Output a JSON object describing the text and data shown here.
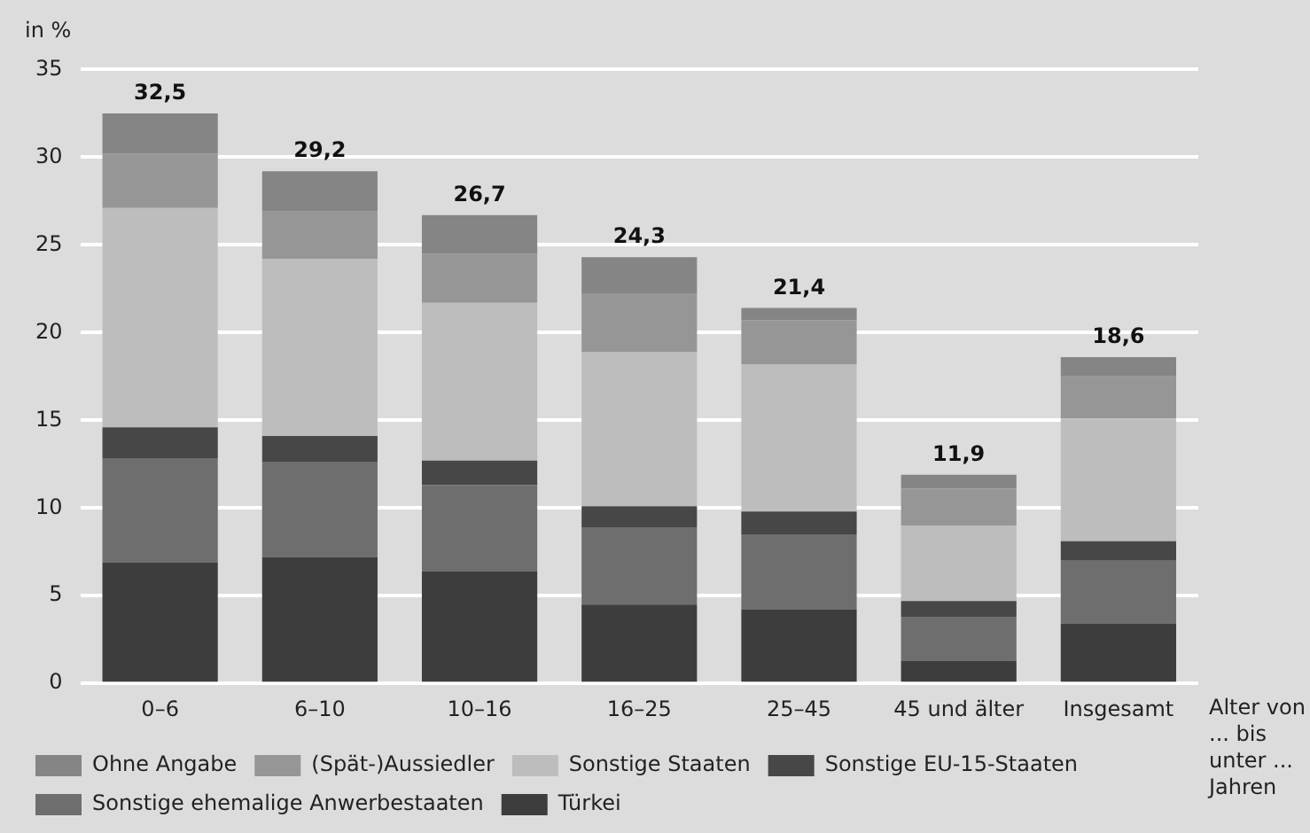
{
  "chart_data": {
    "type": "bar",
    "stacked": true,
    "ylabel": "in %",
    "xlabel": "Alter von ... bis unter ... Jahren",
    "categories": [
      "0–6",
      "6–10",
      "10–16",
      "16–25",
      "25–45",
      "45 und älter",
      "Insgesamt"
    ],
    "series": [
      {
        "name": "Türkei",
        "color": "#3d3d3d",
        "values": [
          6.9,
          7.2,
          6.4,
          4.5,
          4.2,
          1.3,
          3.4
        ]
      },
      {
        "name": "Sonstige ehemalige Anwerbestaaten",
        "color": "#6e6e6e",
        "values": [
          5.9,
          5.4,
          4.9,
          4.4,
          4.3,
          2.5,
          3.6
        ]
      },
      {
        "name": "Sonstige EU-15-Staaten",
        "color": "#474747",
        "values": [
          1.8,
          1.5,
          1.4,
          1.2,
          1.3,
          0.9,
          1.1
        ]
      },
      {
        "name": "Sonstige Staaten",
        "color": "#bdbdbd",
        "values": [
          12.5,
          10.1,
          9.0,
          8.8,
          8.4,
          4.3,
          7.0
        ]
      },
      {
        "name": "(Spät-)Aussiedler",
        "color": "#969696",
        "values": [
          3.1,
          2.7,
          2.8,
          3.3,
          2.5,
          2.1,
          2.4
        ]
      },
      {
        "name": "Ohne Angabe",
        "color": "#858585",
        "values": [
          2.3,
          2.3,
          2.2,
          2.1,
          0.7,
          0.8,
          1.1
        ]
      }
    ],
    "totals": [
      "32,5",
      "29,2",
      "26,7",
      "24,3",
      "21,4",
      "11,9",
      "18,6"
    ],
    "ylim": [
      0,
      35
    ],
    "yticks": [
      0,
      5,
      10,
      15,
      20,
      25,
      30,
      35
    ],
    "grid": "y",
    "legend": "bottom"
  }
}
